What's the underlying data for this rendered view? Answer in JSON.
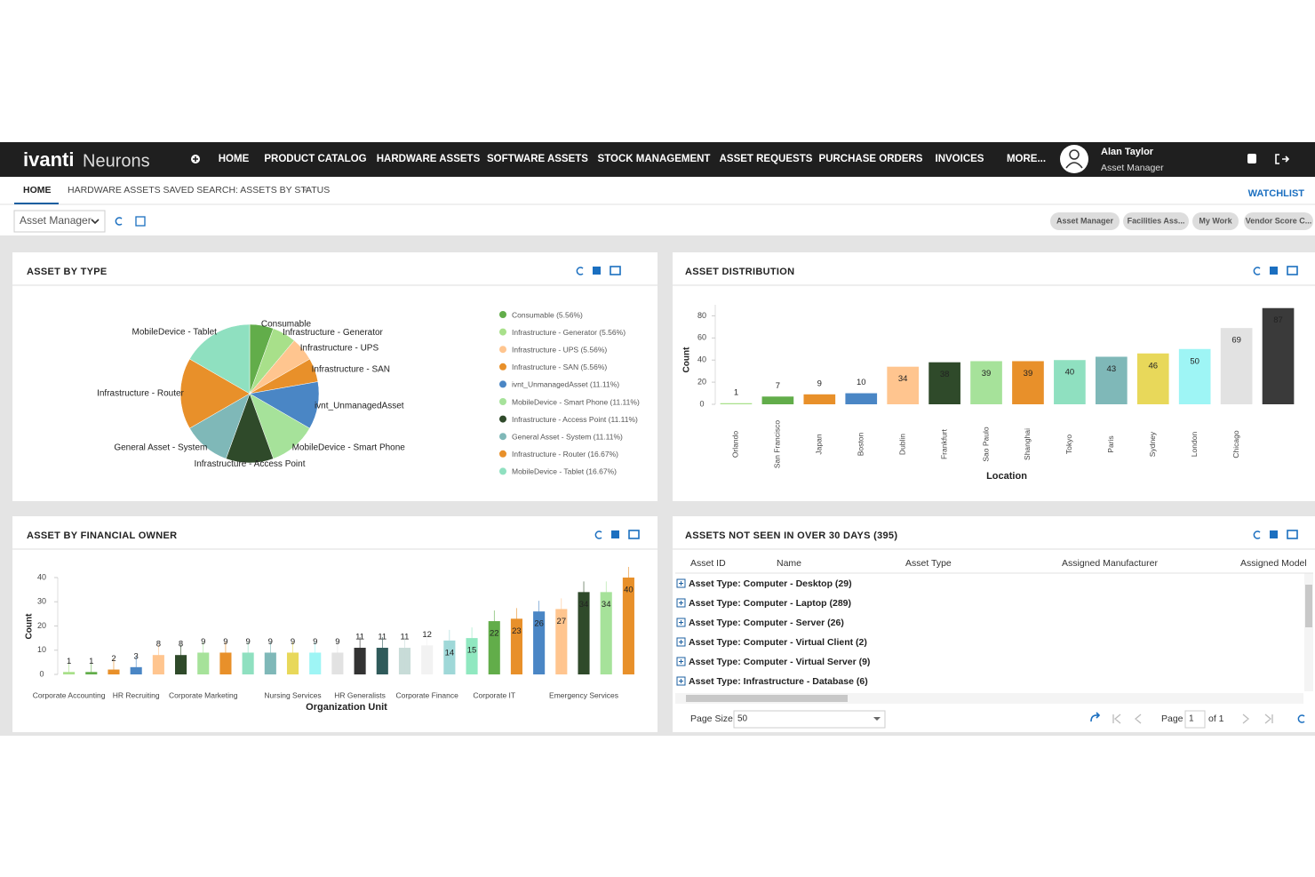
{
  "nav": {
    "logo_brand": "ivanti",
    "logo_product": "Neurons",
    "items": [
      "HOME",
      "PRODUCT CATALOG",
      "HARDWARE ASSETS",
      "SOFTWARE ASSETS",
      "STOCK MANAGEMENT",
      "ASSET REQUESTS",
      "PURCHASE ORDERS",
      "INVOICES",
      "MORE..."
    ],
    "user_name": "Alan Taylor",
    "user_role": "Asset Manager"
  },
  "tabs": [
    "HOME",
    "HARDWARE ASSETS SAVED SEARCH: ASSETS BY STATUS"
  ],
  "watchlist": "WATCHLIST",
  "role_select": "Asset Manager",
  "pills": [
    "Asset Manager",
    "Facilities Ass...",
    "My Work",
    "Vendor Score C..."
  ],
  "chart_data": [
    {
      "type": "pie",
      "title": "ASSET BY TYPE",
      "categories": [
        "Consumable",
        "Infrastructure - Generator",
        "Infrastructure - UPS",
        "Infrastructure - SAN",
        "ivnt_UnmanagedAsset",
        "MobileDevice - Smart Phone",
        "Infrastructure - Access Point",
        "General Asset - System",
        "Infrastructure - Router",
        "MobileDevice - Tablet"
      ],
      "values": [
        5.56,
        5.56,
        5.56,
        5.56,
        11.11,
        11.11,
        11.11,
        11.11,
        16.67,
        16.67
      ],
      "legend_labels": [
        "Consumable (5.56%)",
        "Infrastructure - Generator (5.56%)",
        "Infrastructure - UPS (5.56%)",
        "Infrastructure - SAN (5.56%)",
        "ivnt_UnmanagedAsset (11.11%)",
        "MobileDevice - Smart Phone (11.11%)",
        "Infrastructure - Access Point (11.11%)",
        "General Asset - System (11.11%)",
        "Infrastructure - Router (16.67%)",
        "MobileDevice - Tablet (16.67%)"
      ],
      "colors": [
        "#62ad4a",
        "#a8e08a",
        "#ffc58f",
        "#e8902a",
        "#4a86c5",
        "#a6e29a",
        "#2f4a2a",
        "#7fb8b8",
        "#e8902a",
        "#8fe0c0"
      ]
    },
    {
      "type": "bar",
      "title": "ASSET DISTRIBUTION",
      "x_label": "Location",
      "y_label": "Count",
      "categories": [
        "Orlando",
        "San Francisco",
        "Japan",
        "Boston",
        "Dublin",
        "Frankfurt",
        "Sao Paulo",
        "Shanghai",
        "Tokyo",
        "Paris",
        "Sydney",
        "London",
        "Chicago",
        null
      ],
      "values": [
        1,
        7,
        9,
        10,
        34,
        38,
        39,
        39,
        40,
        43,
        46,
        50,
        69,
        87
      ],
      "colors": [
        "#a8e08a",
        "#62ad4a",
        "#e8902a",
        "#4a86c5",
        "#ffc58f",
        "#2f4a2a",
        "#a6e29a",
        "#e8902a",
        "#8fe0c0",
        "#7fb8b8",
        "#e8d85a",
        "#9ef5f5",
        "#e2e2e2",
        "#3a3a3a"
      ],
      "ylim": [
        0,
        90
      ],
      "yticks": [
        0,
        20,
        40,
        60,
        80
      ]
    },
    {
      "type": "bar",
      "title": "ASSET BY FINANCIAL OWNER",
      "x_label": "Organization Unit",
      "y_label": "Count",
      "categories": [
        "Corporate Accounting",
        null,
        null,
        "HR Recruiting",
        null,
        null,
        "Corporate Marketing",
        null,
        null,
        null,
        "Nursing Services",
        null,
        null,
        "HR Generalists",
        null,
        null,
        "Corporate Finance",
        null,
        null,
        "Corporate IT",
        null,
        null,
        null,
        "Emergency Services",
        null,
        null
      ],
      "values": [
        1,
        1,
        2,
        3,
        8,
        8,
        9,
        9,
        9,
        9,
        9,
        9,
        9,
        11,
        11,
        11,
        12,
        14,
        15,
        22,
        23,
        26,
        27,
        34,
        34,
        40
      ],
      "colors": [
        "#a8e08a",
        "#62ad4a",
        "#e8902a",
        "#4a86c5",
        "#ffc58f",
        "#2f4a2a",
        "#a6e29a",
        "#e8902a",
        "#8fe0c0",
        "#7fb8b8",
        "#e8d85a",
        "#9ef5f5",
        "#e2e2e2",
        "#333333",
        "#2f5a5a",
        "#c8dcd8",
        "#f2f2f2",
        "#9fd8d8",
        "#90e8c0",
        "#62ad4a",
        "#e8902a",
        "#4a86c5",
        "#ffc58f",
        "#2f4a2a",
        "#a6e29a",
        "#e8902a"
      ],
      "ylim": [
        0,
        40
      ],
      "yticks": [
        0,
        10,
        20,
        30,
        40
      ]
    }
  ],
  "table": {
    "title": "ASSETS NOT SEEN IN OVER 30 DAYS (395)",
    "columns": [
      "Asset ID",
      "Name",
      "Asset Type",
      "Assigned Manufacturer",
      "Assigned Model"
    ],
    "rows": [
      "Asset Type: Computer - Desktop (29)",
      "Asset Type: Computer - Laptop (289)",
      "Asset Type: Computer - Server (26)",
      "Asset Type: Computer - Virtual Client (2)",
      "Asset Type: Computer - Virtual Server (9)",
      "Asset Type: Infrastructure - Database (6)"
    ],
    "page_size_label": "Page Size",
    "page_size": "50",
    "page_label": "Page",
    "page": "1",
    "page_of": "of 1"
  }
}
